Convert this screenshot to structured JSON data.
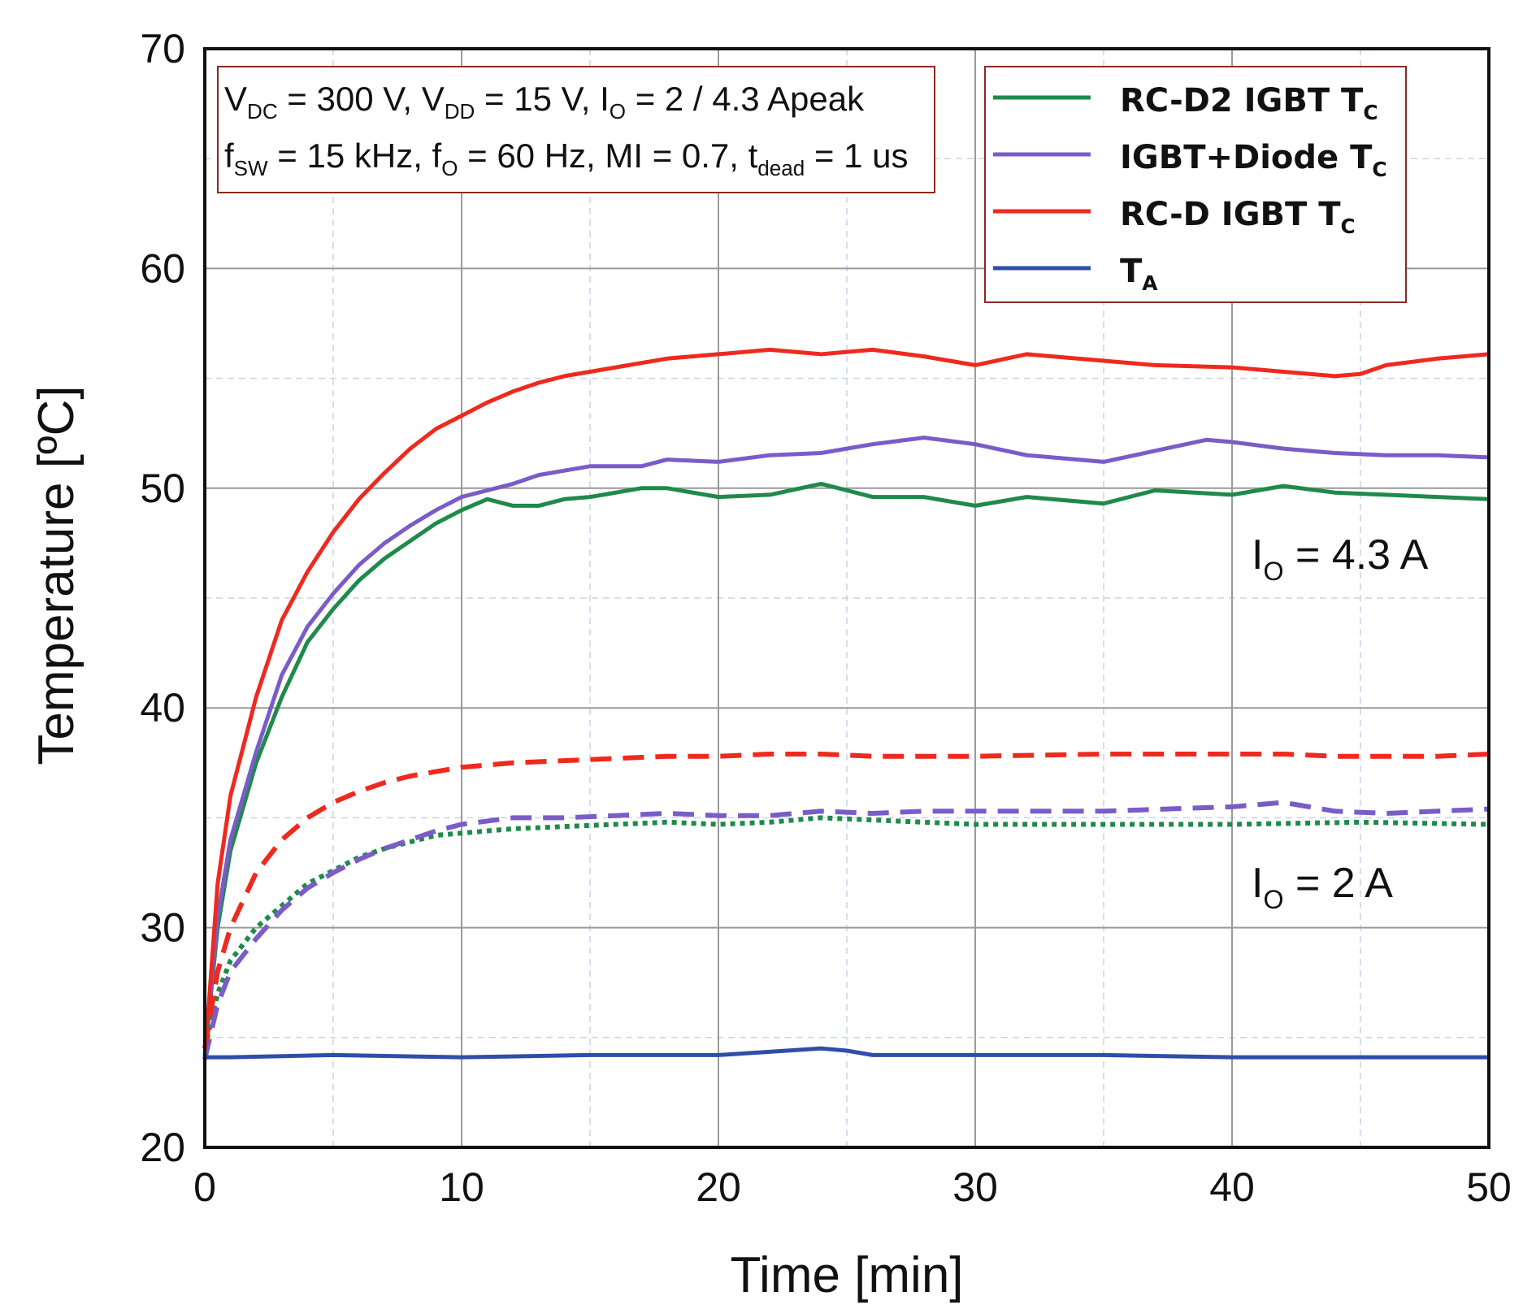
{
  "chart_data": {
    "type": "line",
    "title": "",
    "xlabel": "Time [min]",
    "ylabel": "Temperature [ºC]",
    "xlim": [
      0,
      50
    ],
    "ylim": [
      20,
      70
    ],
    "x_ticks": [
      "0",
      "10",
      "20",
      "30",
      "40",
      "50"
    ],
    "y_ticks": [
      "20",
      "30",
      "40",
      "50",
      "60",
      "70"
    ],
    "grid": true,
    "legend_position": "top-right",
    "conditions": {
      "line1": {
        "V": "V",
        "DC": "DC",
        "eq1": " = 300 V, ",
        "V2": "V",
        "DD": "DD",
        "eq2": " = 15 V, ",
        "I": "I",
        "O": "O",
        "eq3": " = 2 / 4.3 Apeak"
      },
      "line2": {
        "f": "f",
        "SW": "SW",
        "eq1": " = 15 kHz, ",
        "f2": "f",
        "O": "O",
        "eq2": " = 60 Hz, MI = 0.7, ",
        "t": "t",
        "dead": "dead",
        "eq3": " = 1 us"
      }
    },
    "legend": [
      {
        "main": "RC-D2 IGBT T",
        "sub": "C",
        "color": "#1f8a4a"
      },
      {
        "main": "IGBT+Diode T",
        "sub": "C",
        "color": "#7a5cc8"
      },
      {
        "main": "RC-D IGBT T",
        "sub": "C",
        "color": "#ee2a1f"
      },
      {
        "main": "T",
        "sub": "A",
        "color": "#2f4ea8"
      }
    ],
    "annotations": [
      {
        "main": "I",
        "sub": "O",
        "rest": " = 4.3 A"
      },
      {
        "main": "I",
        "sub": "O",
        "rest": " = 2 A"
      }
    ],
    "series": [
      {
        "name": "RC-D2 IGBT TC (IO = 4.3 A)",
        "color": "#1f8a4a",
        "style": "solid",
        "x": [
          0,
          0.5,
          1,
          2,
          3,
          4,
          5,
          6,
          7,
          8,
          9,
          10,
          11,
          12,
          13,
          14,
          15,
          17,
          18,
          20,
          22,
          24,
          26,
          28,
          30,
          32,
          35,
          37,
          40,
          42,
          44,
          46,
          48,
          50
        ],
        "y": [
          24.2,
          30,
          33.5,
          37.5,
          40.5,
          43,
          44.5,
          45.8,
          46.8,
          47.6,
          48.4,
          49.0,
          49.5,
          49.2,
          49.2,
          49.5,
          49.6,
          50.0,
          50.0,
          49.6,
          49.7,
          50.2,
          49.6,
          49.6,
          49.2,
          49.6,
          49.3,
          49.9,
          49.7,
          50.1,
          49.8,
          49.7,
          49.6,
          49.5
        ]
      },
      {
        "name": "IGBT+Diode TC (IO = 4.3 A)",
        "color": "#7a5cc8",
        "style": "solid",
        "x": [
          0,
          0.5,
          1,
          2,
          3,
          4,
          5,
          6,
          7,
          8,
          9,
          10,
          11,
          12,
          13,
          14,
          15,
          17,
          18,
          20,
          22,
          24,
          26,
          28,
          30,
          32,
          35,
          37,
          39,
          40,
          42,
          44,
          46,
          48,
          50
        ],
        "y": [
          24,
          30.5,
          34,
          38,
          41.5,
          43.7,
          45.2,
          46.5,
          47.5,
          48.3,
          49.0,
          49.6,
          49.9,
          50.2,
          50.6,
          50.8,
          51.0,
          51.0,
          51.3,
          51.2,
          51.5,
          51.6,
          52.0,
          52.3,
          52.0,
          51.5,
          51.2,
          51.7,
          52.2,
          52.1,
          51.8,
          51.6,
          51.5,
          51.5,
          51.4
        ]
      },
      {
        "name": "RC-D IGBT TC (IO = 4.3 A)",
        "color": "#ee2a1f",
        "style": "solid",
        "x": [
          0,
          0.5,
          1,
          2,
          3,
          4,
          5,
          6,
          7,
          8,
          9,
          10,
          11,
          12,
          13,
          14,
          15,
          17,
          18,
          20,
          22,
          24,
          26,
          28,
          30,
          32,
          35,
          37,
          40,
          42,
          44,
          45,
          46,
          48,
          50
        ],
        "y": [
          24,
          32,
          36,
          40.5,
          44,
          46.2,
          48,
          49.5,
          50.7,
          51.8,
          52.7,
          53.3,
          53.9,
          54.4,
          54.8,
          55.1,
          55.3,
          55.7,
          55.9,
          56.1,
          56.3,
          56.1,
          56.3,
          56.0,
          55.6,
          56.1,
          55.8,
          55.6,
          55.5,
          55.3,
          55.1,
          55.2,
          55.6,
          55.9,
          56.1
        ]
      },
      {
        "name": "RC-D2 IGBT TC (IO = 2 A)",
        "color": "#1f8a4a",
        "style": "dotted",
        "x": [
          0,
          0.5,
          1,
          2,
          3,
          4,
          5,
          6,
          7,
          8,
          9,
          10,
          12,
          14,
          16,
          18,
          20,
          22,
          24,
          26,
          28,
          30,
          35,
          40,
          45,
          50
        ],
        "y": [
          24.5,
          27,
          28.5,
          30,
          31,
          32,
          32.6,
          33.2,
          33.6,
          33.9,
          34.2,
          34.3,
          34.5,
          34.6,
          34.7,
          34.8,
          34.7,
          34.8,
          35.0,
          34.9,
          34.8,
          34.7,
          34.7,
          34.7,
          34.8,
          34.7
        ]
      },
      {
        "name": "IGBT+Diode TC (IO = 2 A)",
        "color": "#7a5cc8",
        "style": "dashed",
        "x": [
          0,
          0.5,
          1,
          2,
          3,
          4,
          5,
          6,
          7,
          8,
          9,
          10,
          12,
          14,
          16,
          18,
          20,
          22,
          24,
          26,
          28,
          30,
          35,
          40,
          42,
          44,
          46,
          48,
          50
        ],
        "y": [
          24,
          26.5,
          28,
          29.5,
          30.8,
          31.8,
          32.5,
          33.1,
          33.6,
          34.0,
          34.4,
          34.7,
          35.0,
          35.0,
          35.1,
          35.2,
          35.1,
          35.1,
          35.3,
          35.2,
          35.3,
          35.3,
          35.3,
          35.5,
          35.7,
          35.3,
          35.2,
          35.3,
          35.4
        ]
      },
      {
        "name": "RC-D IGBT TC (IO = 2 A)",
        "color": "#ee2a1f",
        "style": "dashed",
        "x": [
          0,
          0.5,
          1,
          2,
          3,
          4,
          5,
          6,
          7,
          8,
          9,
          10,
          12,
          14,
          16,
          18,
          20,
          22,
          24,
          26,
          28,
          30,
          35,
          40,
          42,
          44,
          46,
          48,
          50
        ],
        "y": [
          24.5,
          28,
          30,
          32.5,
          34,
          35,
          35.7,
          36.2,
          36.6,
          36.9,
          37.1,
          37.3,
          37.5,
          37.6,
          37.7,
          37.8,
          37.8,
          37.9,
          37.9,
          37.8,
          37.8,
          37.8,
          37.9,
          37.9,
          37.9,
          37.8,
          37.8,
          37.8,
          37.9
        ]
      },
      {
        "name": "TA",
        "color": "#2f4ea8",
        "style": "solid",
        "x": [
          0,
          1,
          5,
          10,
          15,
          20,
          24,
          25,
          26,
          30,
          35,
          40,
          45,
          50
        ],
        "y": [
          24.1,
          24.1,
          24.2,
          24.1,
          24.2,
          24.2,
          24.5,
          24.4,
          24.2,
          24.2,
          24.2,
          24.1,
          24.1,
          24.1
        ]
      }
    ]
  }
}
